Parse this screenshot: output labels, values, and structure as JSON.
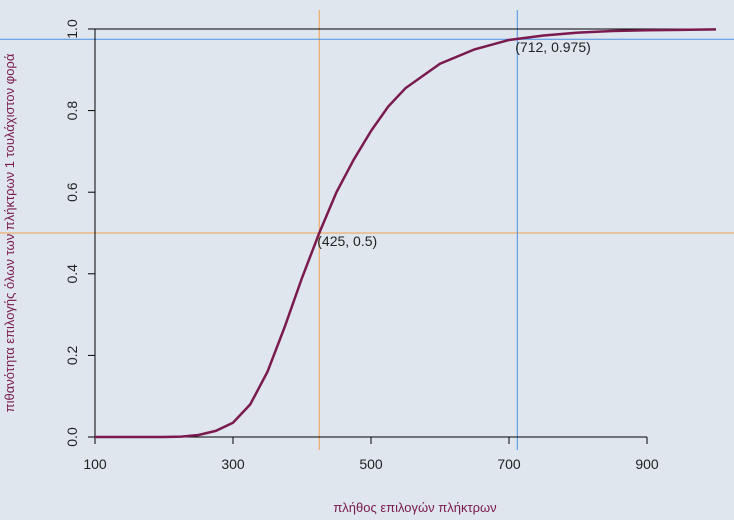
{
  "chart_data": {
    "type": "line",
    "x_label": "πλήθος επιλογών πλήκτρων",
    "y_label": "πιθανότητα επιλογής όλων των πλήκτρων 1 τουλάχιστον φορά",
    "x": [
      100,
      150,
      200,
      225,
      250,
      275,
      300,
      325,
      350,
      375,
      400,
      425,
      450,
      475,
      500,
      525,
      550,
      600,
      650,
      700,
      750,
      800,
      850,
      900,
      950,
      1000
    ],
    "series": [
      {
        "color": "#7a1a4e",
        "values": [
          0,
          0,
          0,
          0.001,
          0.005,
          0.015,
          0.035,
          0.08,
          0.16,
          0.27,
          0.39,
          0.5,
          0.6,
          0.68,
          0.75,
          0.81,
          0.855,
          0.915,
          0.95,
          0.973,
          0.984,
          0.991,
          0.995,
          0.997,
          0.998,
          0.999
        ]
      }
    ],
    "reference_lines": [
      {
        "x": 425,
        "y": 0.5,
        "color": "#f0a050",
        "label": "(425, 0.5)"
      },
      {
        "x": 712,
        "y": 0.975,
        "color": "#4a90e2",
        "label": "(712, 0.975)"
      },
      {
        "y": 1,
        "color": "#000000"
      }
    ],
    "xlim": [
      100,
      1000
    ],
    "ylim": [
      0,
      1
    ],
    "xticks": [
      100,
      300,
      500,
      700,
      900
    ],
    "yticks": [
      {
        "value": 0,
        "label": "0.0"
      },
      {
        "value": 0.2,
        "label": "0.2"
      },
      {
        "value": 0.4,
        "label": "0.4"
      },
      {
        "value": 0.6,
        "label": "0.6"
      },
      {
        "value": 0.8,
        "label": "0.8"
      },
      {
        "value": 1,
        "label": "1.0"
      }
    ]
  }
}
